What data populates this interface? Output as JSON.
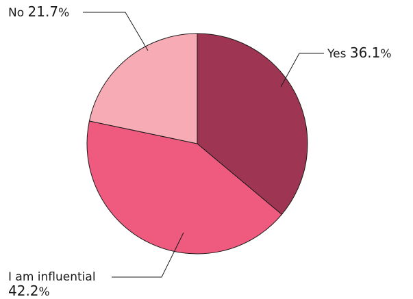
{
  "chart_data": {
    "type": "pie",
    "title": "",
    "start_angle_deg": 0,
    "direction": "clockwise",
    "slices": [
      {
        "label": "Yes",
        "value": 36.1,
        "value_text": "36.1",
        "unit": "%",
        "color": "#9e3552"
      },
      {
        "label": "I am influential",
        "value": 42.2,
        "value_text": "42.2",
        "unit": "%",
        "color": "#ef5b7e"
      },
      {
        "label": "No",
        "value": 21.7,
        "value_text": "21.7",
        "unit": "%",
        "color": "#f6abb5"
      }
    ]
  }
}
